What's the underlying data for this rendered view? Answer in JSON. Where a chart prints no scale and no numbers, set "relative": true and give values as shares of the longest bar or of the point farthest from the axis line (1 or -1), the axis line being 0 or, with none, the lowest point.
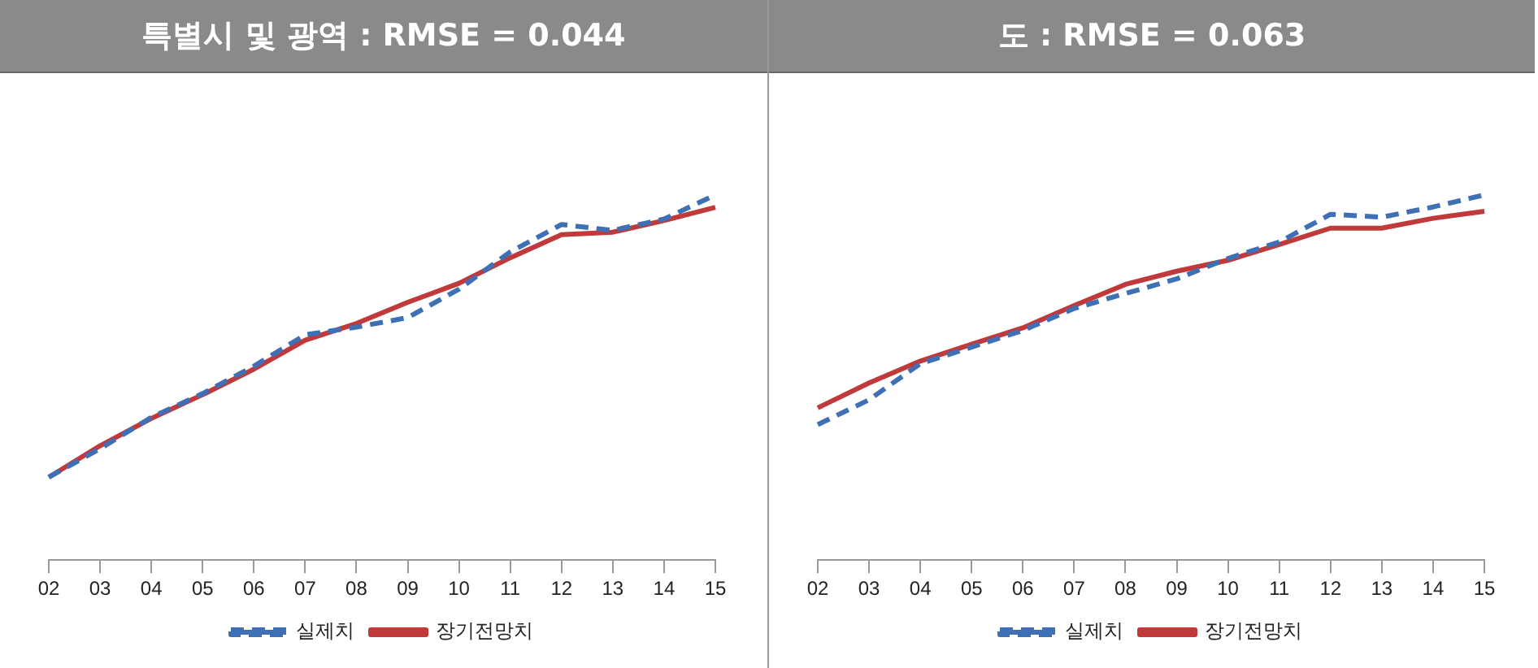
{
  "chart_data": [
    {
      "type": "line",
      "title": "특별시 및 광역 : RMSE = 0.044",
      "relative": true,
      "legend": "bottom",
      "grid": false,
      "marker": "none",
      "categories": [
        "02",
        "03",
        "04",
        "05",
        "06",
        "07",
        "08",
        "09",
        "10",
        "11",
        "12",
        "13",
        "14",
        "15"
      ],
      "series": [
        {
          "name": "실제치",
          "color": "#3f6fb5",
          "line_style": "dashed",
          "values": [
            0.227,
            0.305,
            0.391,
            0.456,
            0.531,
            0.617,
            0.638,
            0.664,
            0.742,
            0.844,
            0.919,
            0.903,
            0.934,
            1
          ]
        },
        {
          "name": "장기전망치",
          "color": "#c0393b",
          "line_style": "solid",
          "values": [
            0.227,
            0.313,
            0.388,
            0.453,
            0.523,
            0.602,
            0.648,
            0.706,
            0.758,
            0.828,
            0.891,
            0.898,
            0.93,
            0.966
          ]
        }
      ]
    },
    {
      "type": "line",
      "title": "도 : RMSE = 0.063",
      "relative": true,
      "legend": "bottom",
      "grid": false,
      "marker": "none",
      "categories": [
        "02",
        "03",
        "04",
        "05",
        "06",
        "07",
        "08",
        "09",
        "10",
        "11",
        "12",
        "13",
        "14",
        "15"
      ],
      "series": [
        {
          "name": "실제치",
          "color": "#3f6fb5",
          "line_style": "dashed",
          "values": [
            0.371,
            0.439,
            0.538,
            0.583,
            0.629,
            0.689,
            0.73,
            0.77,
            0.826,
            0.871,
            0.947,
            0.939,
            0.967,
            1
          ]
        },
        {
          "name": "장기전망치",
          "color": "#c0393b",
          "line_style": "solid",
          "values": [
            0.417,
            0.485,
            0.545,
            0.591,
            0.636,
            0.697,
            0.755,
            0.791,
            0.821,
            0.864,
            0.909,
            0.909,
            0.936,
            0.955
          ]
        }
      ]
    }
  ]
}
